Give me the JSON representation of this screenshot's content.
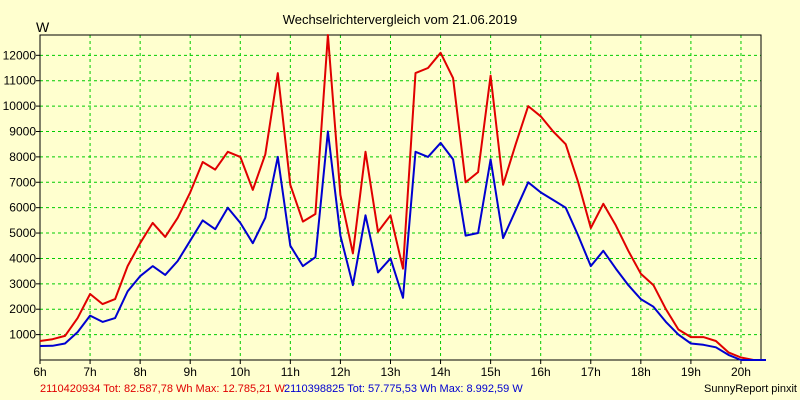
{
  "colors": {
    "background": "#ffffcf",
    "grid": "#00cc00",
    "series1": "#e00000",
    "series2": "#0000d0",
    "axis": "#000000"
  },
  "chart_data": {
    "type": "line",
    "title": "Wechselrichtervergleich vom 21.06.2019",
    "ylabel": "W",
    "xlabel": "",
    "xlim": [
      6,
      20.4
    ],
    "ylim": [
      0,
      12800
    ],
    "grid": true,
    "y_ticks": [
      1000,
      2000,
      3000,
      4000,
      5000,
      6000,
      7000,
      8000,
      9000,
      10000,
      11000,
      12000
    ],
    "x_ticks": [
      {
        "value": 6,
        "label": "6h"
      },
      {
        "value": 7,
        "label": "7h"
      },
      {
        "value": 8,
        "label": "8h"
      },
      {
        "value": 9,
        "label": "9h"
      },
      {
        "value": 10,
        "label": "10h"
      },
      {
        "value": 11,
        "label": "11h"
      },
      {
        "value": 12,
        "label": "12h"
      },
      {
        "value": 13,
        "label": "13h"
      },
      {
        "value": 14,
        "label": "14h"
      },
      {
        "value": 15,
        "label": "15h"
      },
      {
        "value": 16,
        "label": "16h"
      },
      {
        "value": 17,
        "label": "17h"
      },
      {
        "value": 18,
        "label": "18h"
      },
      {
        "value": 19,
        "label": "19h"
      },
      {
        "value": 20,
        "label": "20h"
      }
    ],
    "x": [
      "6:00",
      "6:15",
      "6:30",
      "6:45",
      "7:00",
      "7:15",
      "7:30",
      "7:45",
      "8:00",
      "8:15",
      "8:30",
      "8:45",
      "9:00",
      "9:15",
      "9:30",
      "9:45",
      "10:00",
      "10:15",
      "10:30",
      "10:45",
      "11:00",
      "11:15",
      "11:30",
      "11:45",
      "12:00",
      "12:15",
      "12:30",
      "12:45",
      "13:00",
      "13:15",
      "13:30",
      "13:45",
      "14:00",
      "14:15",
      "14:30",
      "14:45",
      "15:00",
      "15:15",
      "15:30",
      "15:45",
      "16:00",
      "16:15",
      "16:30",
      "16:45",
      "17:00",
      "17:15",
      "17:30",
      "17:45",
      "18:00",
      "18:15",
      "18:30",
      "18:45",
      "19:00",
      "19:15",
      "19:30",
      "19:45",
      "20:00",
      "20:15",
      "20:30"
    ],
    "series": [
      {
        "name": "2110420934",
        "color": "#e00000",
        "values": [
          750,
          820,
          950,
          1650,
          2600,
          2200,
          2400,
          3700,
          4600,
          5400,
          4850,
          5600,
          6600,
          7800,
          7500,
          8200,
          8000,
          6700,
          8100,
          11300,
          6900,
          5450,
          5750,
          12800,
          6500,
          4200,
          8200,
          5050,
          5700,
          3600,
          11300,
          11500,
          12100,
          11100,
          7000,
          7400,
          11200,
          6900,
          8500,
          10000,
          9600,
          9000,
          8500,
          7000,
          5200,
          6150,
          5300,
          4300,
          3400,
          2950,
          2000,
          1200,
          900,
          900,
          750,
          300,
          100,
          0,
          0
        ],
        "total": "Tot: 82.587,78 Wh",
        "max": "Max: 12.785,21 W"
      },
      {
        "name": "2110398825",
        "color": "#0000d0",
        "values": [
          550,
          560,
          650,
          1100,
          1750,
          1500,
          1650,
          2700,
          3300,
          3700,
          3350,
          3900,
          4700,
          5500,
          5150,
          6000,
          5400,
          4600,
          5600,
          8000,
          4500,
          3700,
          4050,
          9000,
          4900,
          2950,
          5700,
          3450,
          4000,
          2450,
          8200,
          8000,
          8550,
          7900,
          4900,
          5000,
          7900,
          4800,
          5900,
          7000,
          6600,
          6300,
          6000,
          4900,
          3700,
          4300,
          3600,
          2950,
          2400,
          2100,
          1500,
          1000,
          650,
          600,
          500,
          200,
          0,
          0,
          0
        ],
        "total": "Tot: 57.775,53 Wh",
        "max": "Max: 8.992,59 W"
      }
    ]
  },
  "footer": {
    "s1_text": "2110420934 Tot: 82.587,78 Wh Max: 12.785,21 W",
    "s2_text": "2110398825 Tot: 57.775,53 Wh Max: 8.992,59 W",
    "brand": "SunnyReport pinxit"
  }
}
